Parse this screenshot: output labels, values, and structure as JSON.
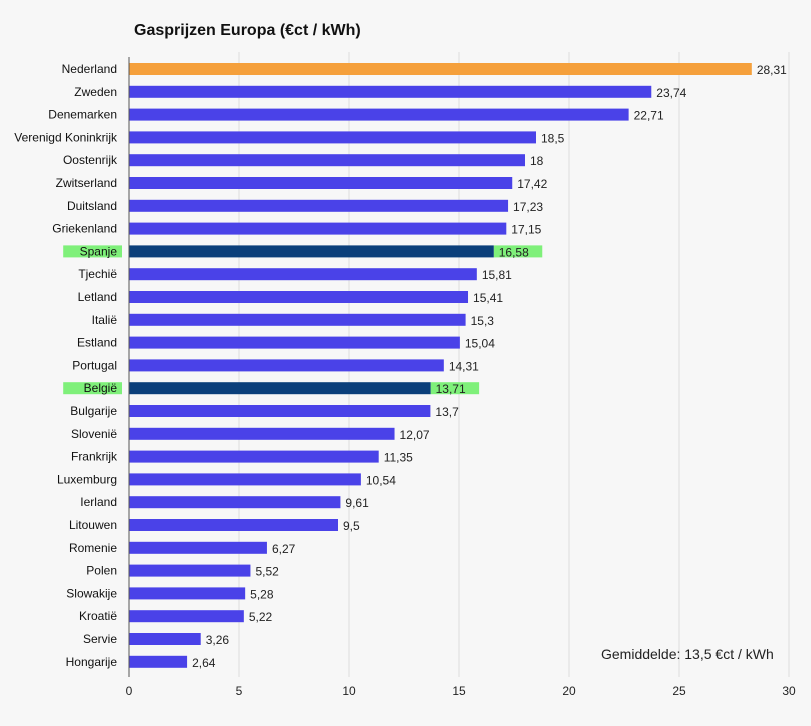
{
  "chart_data": {
    "type": "bar",
    "orientation": "horizontal",
    "title": "Gasprijzen Europa (€ct / kWh)",
    "xlabel": "",
    "ylabel": "",
    "xlim": [
      0,
      30
    ],
    "xticks": [
      "0",
      "5",
      "10",
      "15",
      "20",
      "25",
      "30"
    ],
    "grid": true,
    "categories": [
      "Nederland",
      "Zweden",
      "Denemarken",
      "Verenigd Koninkrijk",
      "Oostenrijk",
      "Zwitserland",
      "Duitsland",
      "Griekenland",
      "Spanje",
      "Tjechië",
      "Letland",
      "Italië",
      "Estland",
      "Portugal",
      "België",
      "Bulgarije",
      "Slovenië",
      "Frankrijk",
      "Luxemburg",
      "Ierland",
      "Litouwen",
      "Romenie",
      "Polen",
      "Slowakije",
      "Kroatië",
      "Servie",
      "Hongarije"
    ],
    "values": [
      28.31,
      23.74,
      22.71,
      18.5,
      18,
      17.42,
      17.23,
      17.15,
      16.58,
      15.81,
      15.41,
      15.3,
      15.04,
      14.31,
      13.71,
      13.7,
      12.07,
      11.35,
      10.54,
      9.61,
      9.5,
      6.27,
      5.52,
      5.28,
      5.22,
      3.26,
      2.64
    ],
    "value_labels": [
      "28,31",
      "23,74",
      "22,71",
      "18,5",
      "18",
      "17,42",
      "17,23",
      "17,15",
      "16,58",
      "15,81",
      "15,41",
      "15,3",
      "15,04",
      "14,31",
      "13,71",
      "13,7",
      "12,07",
      "11,35",
      "10,54",
      "9,61",
      "9,5",
      "6,27",
      "5,52",
      "5,28",
      "5,22",
      "3,26",
      "2,64"
    ],
    "highlighted": [
      "Spanje",
      "België"
    ],
    "annotation": "Gemiddelde: 13,5 €ct / kWh",
    "colors": {
      "default": "#4a42e8",
      "top": "#f5a03c",
      "highlight": "#0b3f7a",
      "highlight_band": "#7ff07a",
      "grid": "#dddddd",
      "axis": "#555555"
    }
  }
}
